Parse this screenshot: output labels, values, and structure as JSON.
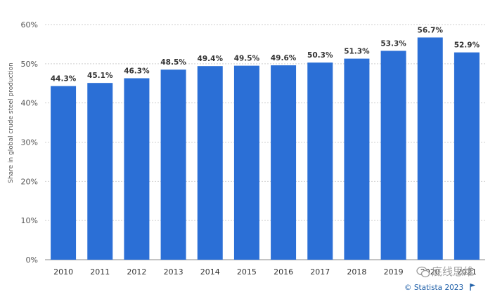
{
  "chart_data": {
    "type": "bar",
    "title": "",
    "xlabel": "",
    "ylabel": "Share in global crude steel production",
    "categories": [
      "2010",
      "2011",
      "2012",
      "2013",
      "2014",
      "2015",
      "2016",
      "2017",
      "2018",
      "2019",
      "2020",
      "2021"
    ],
    "values": [
      44.3,
      45.1,
      46.3,
      48.5,
      49.4,
      49.5,
      49.6,
      50.3,
      51.3,
      53.3,
      56.7,
      52.9
    ],
    "value_labels": [
      "44.3%",
      "45.1%",
      "46.3%",
      "48.5%",
      "49.4%",
      "49.5%",
      "49.6%",
      "50.3%",
      "51.3%",
      "53.3%",
      "56.7%",
      "52.9%"
    ],
    "ylim": [
      0,
      60
    ],
    "yticks": [
      0,
      10,
      20,
      30,
      40,
      50,
      60
    ],
    "ytick_labels": [
      "0%",
      "10%",
      "20%",
      "30%",
      "40%",
      "50%",
      "60%"
    ],
    "grid": true,
    "bar_color": "#2b6fd6",
    "grid_color": "#cfcfcf"
  },
  "credit": "© Statista 2023",
  "watermark": "底线思维"
}
